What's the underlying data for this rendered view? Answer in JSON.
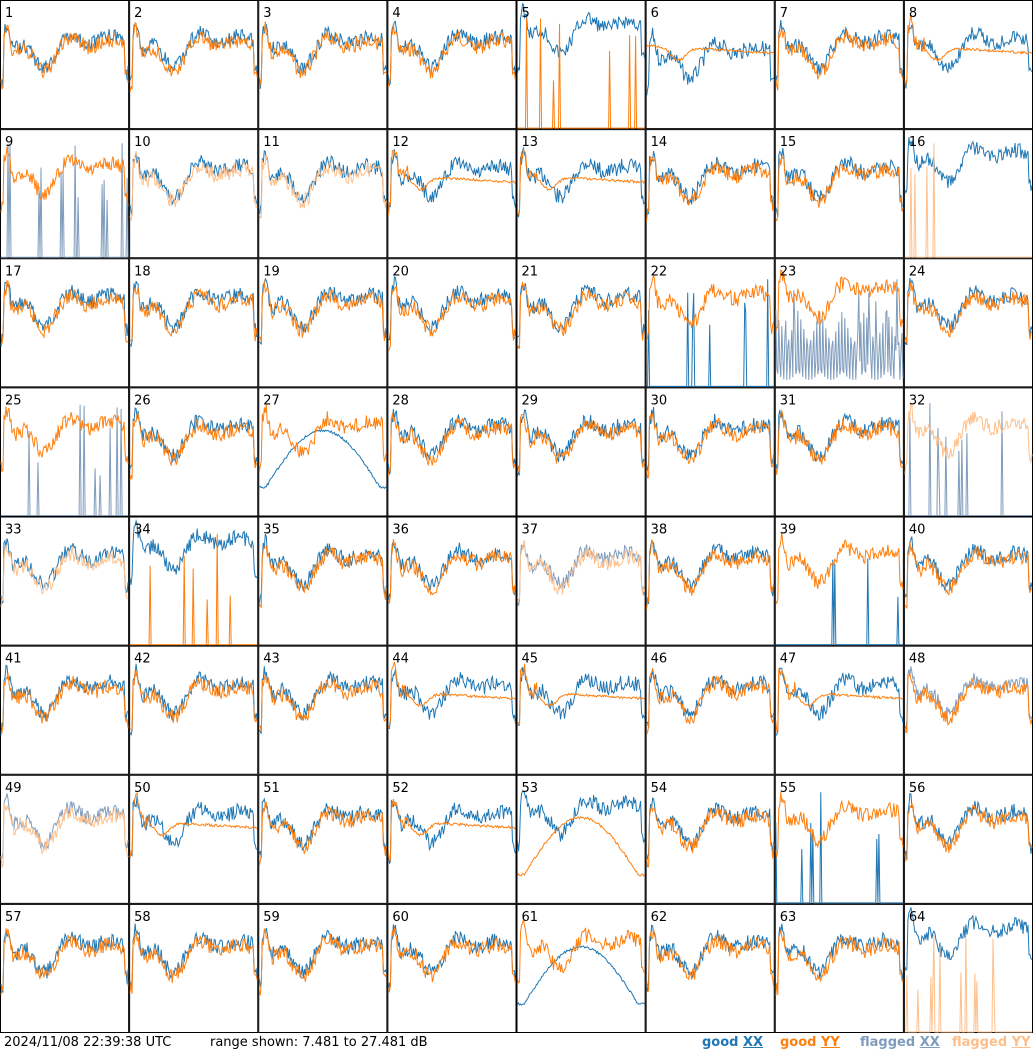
{
  "colors": {
    "good_xx": "#1f77b4",
    "good_yy": "#ff7f0e",
    "flagged_xx": "#7f9cbc",
    "flagged_yy": "#ffbf8a",
    "border": "#000000"
  },
  "footer": {
    "timestamp": "2024/11/08 22:39:38 UTC",
    "range_text": "range shown: 7.481 to 27.481 dB",
    "legend_good": "good",
    "legend_flagged": "flagged",
    "legend_xx": "XX",
    "legend_yy": "YY"
  },
  "chart_data": {
    "type": "line",
    "layout": "8x8 small multiples",
    "y_unit": "dB",
    "ylim": [
      7.481,
      27.481
    ],
    "panels": [
      {
        "label": "1",
        "profile": "A",
        "offset": 0,
        "xx": "good",
        "yy": "good",
        "dip_xx": 0,
        "dip_yy": 5,
        "special": "none"
      },
      {
        "label": "2",
        "profile": "B",
        "offset": 1,
        "xx": "good",
        "yy": "good",
        "special": "none"
      },
      {
        "label": "3",
        "profile": "B",
        "offset": 2,
        "xx": "good",
        "yy": "good",
        "special": "none"
      },
      {
        "label": "4",
        "profile": "B",
        "offset": 3,
        "xx": "good",
        "yy": "good",
        "special": "none"
      },
      {
        "label": "5",
        "profile": "C",
        "offset": 4,
        "xx": "good",
        "yy": "good",
        "special": "yy_spikes"
      },
      {
        "label": "6",
        "profile": "D",
        "offset": 5,
        "xx": "good",
        "yy": "good",
        "special": "xx_dip"
      },
      {
        "label": "7",
        "profile": "B",
        "offset": 6,
        "xx": "good",
        "yy": "good",
        "special": "none"
      },
      {
        "label": "8",
        "profile": "E",
        "offset": 7,
        "xx": "good",
        "yy": "good",
        "special": "none"
      },
      {
        "label": "9",
        "profile": "B",
        "offset": 8,
        "xx": "flagged",
        "yy": "good",
        "special": "xx_spikes"
      },
      {
        "label": "10",
        "profile": "B",
        "offset": 9,
        "xx": "good",
        "yy": "flagged",
        "special": "none"
      },
      {
        "label": "11",
        "profile": "B",
        "offset": 10,
        "xx": "good",
        "yy": "flagged",
        "special": "none"
      },
      {
        "label": "12",
        "profile": "E",
        "offset": 11,
        "xx": "good",
        "yy": "good",
        "special": "none"
      },
      {
        "label": "13",
        "profile": "E",
        "offset": 12,
        "xx": "good",
        "yy": "good",
        "special": "none"
      },
      {
        "label": "14",
        "profile": "B",
        "offset": 13,
        "xx": "good",
        "yy": "good",
        "special": "none"
      },
      {
        "label": "15",
        "profile": "B",
        "offset": 14,
        "xx": "good",
        "yy": "good",
        "special": "none"
      },
      {
        "label": "16",
        "profile": "C",
        "offset": 15,
        "xx": "good",
        "yy": "flagged",
        "special": "yy_spikes"
      },
      {
        "label": "17",
        "profile": "B",
        "offset": 16,
        "xx": "good",
        "yy": "good",
        "special": "none"
      },
      {
        "label": "18",
        "profile": "B",
        "offset": 17,
        "xx": "good",
        "yy": "good",
        "special": "none"
      },
      {
        "label": "19",
        "profile": "B",
        "offset": 18,
        "xx": "good",
        "yy": "good",
        "special": "none"
      },
      {
        "label": "20",
        "profile": "B",
        "offset": 19,
        "xx": "good",
        "yy": "good",
        "special": "none"
      },
      {
        "label": "21",
        "profile": "B",
        "offset": 20,
        "xx": "good",
        "yy": "good",
        "special": "none"
      },
      {
        "label": "22",
        "profile": "C",
        "offset": 21,
        "xx": "good",
        "yy": "good",
        "special": "xx_spikes"
      },
      {
        "label": "23",
        "profile": "B",
        "offset": 22,
        "xx": "flagged",
        "yy": "good",
        "special": "xx_noisy"
      },
      {
        "label": "24",
        "profile": "B",
        "offset": 23,
        "xx": "good",
        "yy": "good",
        "special": "none"
      },
      {
        "label": "25",
        "profile": "C",
        "offset": 24,
        "xx": "flagged",
        "yy": "good",
        "special": "xx_spikes"
      },
      {
        "label": "26",
        "profile": "B",
        "offset": 25,
        "xx": "good",
        "yy": "good",
        "special": "none"
      },
      {
        "label": "27",
        "profile": "F",
        "offset": 26,
        "xx": "good",
        "yy": "good",
        "special": "xx_arc"
      },
      {
        "label": "28",
        "profile": "B",
        "offset": 27,
        "xx": "good",
        "yy": "good",
        "special": "none"
      },
      {
        "label": "29",
        "profile": "B",
        "offset": 28,
        "xx": "good",
        "yy": "good",
        "special": "none"
      },
      {
        "label": "30",
        "profile": "B",
        "offset": 29,
        "xx": "good",
        "yy": "good",
        "special": "none"
      },
      {
        "label": "31",
        "profile": "B",
        "offset": 30,
        "xx": "good",
        "yy": "good",
        "special": "none"
      },
      {
        "label": "32",
        "profile": "B",
        "offset": 31,
        "xx": "flagged",
        "yy": "flagged",
        "special": "xx_spikes"
      },
      {
        "label": "33",
        "profile": "B",
        "offset": 32,
        "xx": "good",
        "yy": "flagged",
        "special": "none"
      },
      {
        "label": "34",
        "profile": "C",
        "offset": 33,
        "xx": "good",
        "yy": "good",
        "special": "yy_spikes"
      },
      {
        "label": "35",
        "profile": "B",
        "offset": 34,
        "xx": "good",
        "yy": "good",
        "special": "none"
      },
      {
        "label": "36",
        "profile": "B",
        "offset": 35,
        "xx": "good",
        "yy": "good",
        "special": "none"
      },
      {
        "label": "37",
        "profile": "B",
        "offset": 36,
        "xx": "flagged",
        "yy": "flagged",
        "special": "none"
      },
      {
        "label": "38",
        "profile": "B",
        "offset": 37,
        "xx": "good",
        "yy": "good",
        "special": "none"
      },
      {
        "label": "39",
        "profile": "C",
        "offset": 38,
        "xx": "good",
        "yy": "good",
        "special": "xx_spikes"
      },
      {
        "label": "40",
        "profile": "B",
        "offset": 39,
        "xx": "good",
        "yy": "good",
        "special": "none"
      },
      {
        "label": "41",
        "profile": "B",
        "offset": 40,
        "xx": "good",
        "yy": "good",
        "special": "none"
      },
      {
        "label": "42",
        "profile": "B",
        "offset": 41,
        "xx": "good",
        "yy": "good",
        "special": "none"
      },
      {
        "label": "43",
        "profile": "B",
        "offset": 42,
        "xx": "good",
        "yy": "good",
        "special": "none"
      },
      {
        "label": "44",
        "profile": "E",
        "offset": 43,
        "xx": "good",
        "yy": "good",
        "special": "none"
      },
      {
        "label": "45",
        "profile": "E",
        "offset": 44,
        "xx": "good",
        "yy": "good",
        "special": "none"
      },
      {
        "label": "46",
        "profile": "B",
        "offset": 45,
        "xx": "good",
        "yy": "good",
        "special": "none"
      },
      {
        "label": "47",
        "profile": "E",
        "offset": 46,
        "xx": "good",
        "yy": "good",
        "special": "none"
      },
      {
        "label": "48",
        "profile": "B",
        "offset": 47,
        "xx": "flagged",
        "yy": "good",
        "special": "none"
      },
      {
        "label": "49",
        "profile": "B",
        "offset": 48,
        "xx": "flagged",
        "yy": "flagged",
        "special": "none"
      },
      {
        "label": "50",
        "profile": "E",
        "offset": 49,
        "xx": "good",
        "yy": "good",
        "special": "none"
      },
      {
        "label": "51",
        "profile": "B",
        "offset": 50,
        "xx": "good",
        "yy": "good",
        "special": "none"
      },
      {
        "label": "52",
        "profile": "E",
        "offset": 51,
        "xx": "good",
        "yy": "good",
        "special": "none"
      },
      {
        "label": "53",
        "profile": "G",
        "offset": 52,
        "xx": "good",
        "yy": "good",
        "special": "yy_arc"
      },
      {
        "label": "54",
        "profile": "B",
        "offset": 53,
        "xx": "good",
        "yy": "good",
        "special": "none"
      },
      {
        "label": "55",
        "profile": "C",
        "offset": 54,
        "xx": "good",
        "yy": "good",
        "special": "xx_spikes"
      },
      {
        "label": "56",
        "profile": "B",
        "offset": 55,
        "xx": "good",
        "yy": "good",
        "special": "none"
      },
      {
        "label": "57",
        "profile": "B",
        "offset": 56,
        "xx": "good",
        "yy": "good",
        "special": "none"
      },
      {
        "label": "58",
        "profile": "B",
        "offset": 57,
        "xx": "good",
        "yy": "good",
        "special": "none"
      },
      {
        "label": "59",
        "profile": "B",
        "offset": 58,
        "xx": "good",
        "yy": "good",
        "special": "none"
      },
      {
        "label": "60",
        "profile": "B",
        "offset": 59,
        "xx": "good",
        "yy": "good",
        "special": "none"
      },
      {
        "label": "61",
        "profile": "F",
        "offset": 60,
        "xx": "good",
        "yy": "good",
        "special": "xx_arc"
      },
      {
        "label": "62",
        "profile": "B",
        "offset": 61,
        "xx": "good",
        "yy": "good",
        "special": "none"
      },
      {
        "label": "63",
        "profile": "B",
        "offset": 62,
        "xx": "good",
        "yy": "good",
        "special": "none"
      },
      {
        "label": "64",
        "profile": "C",
        "offset": 63,
        "xx": "good",
        "yy": "flagged",
        "special": "yy_spikes"
      }
    ]
  }
}
